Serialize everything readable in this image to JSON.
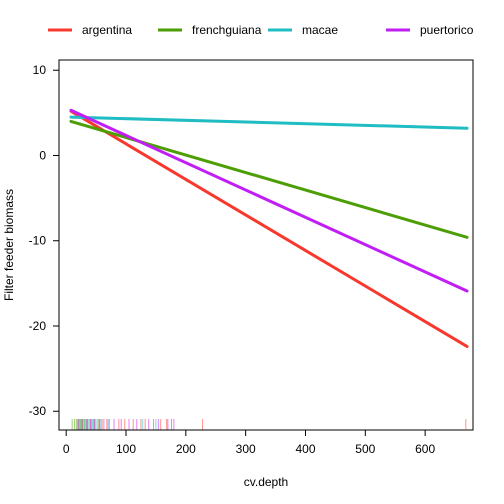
{
  "chart_data": {
    "type": "line",
    "title": "",
    "xlabel": "cv.depth",
    "ylabel": "Filter feeder biomass",
    "xlim": [
      -12,
      680
    ],
    "ylim": [
      -32.2,
      11.2
    ],
    "xticks": [
      0,
      100,
      200,
      300,
      400,
      500,
      600
    ],
    "yticks": [
      -30,
      -20,
      -10,
      0,
      10
    ],
    "grid": false,
    "legend_position": "top",
    "series": [
      {
        "name": "argentina",
        "color": "#f8382d",
        "x": [
          8,
          670
        ],
        "y": [
          5.2,
          -22.4
        ]
      },
      {
        "name": "frenchguiana",
        "color": "#4d9e05",
        "x": [
          8,
          670
        ],
        "y": [
          4.0,
          -9.6
        ]
      },
      {
        "name": "macae",
        "color": "#1fbcc3",
        "x": [
          8,
          670
        ],
        "y": [
          4.5,
          3.2
        ]
      },
      {
        "name": "puertorico",
        "color": "#c11ef6",
        "x": [
          8,
          670
        ],
        "y": [
          5.3,
          -15.9
        ]
      }
    ],
    "rug": [
      {
        "series": "frenchguiana",
        "x": [
          10,
          14,
          17,
          20,
          22,
          24,
          27,
          31,
          36,
          42,
          48,
          55
        ]
      },
      {
        "series": "macae",
        "x": [
          19,
          25,
          30,
          34,
          38,
          44,
          50,
          58,
          70,
          128,
          150
        ]
      },
      {
        "series": "argentina",
        "x": [
          26,
          33,
          40,
          46,
          53,
          60,
          68,
          88,
          98,
          112,
          125,
          132,
          146,
          158,
          168,
          228,
          668
        ]
      },
      {
        "series": "puertorico",
        "x": [
          21,
          28,
          35,
          41,
          47,
          56,
          63,
          72,
          80,
          92,
          105,
          118,
          138,
          154,
          170,
          176,
          180
        ]
      }
    ]
  }
}
